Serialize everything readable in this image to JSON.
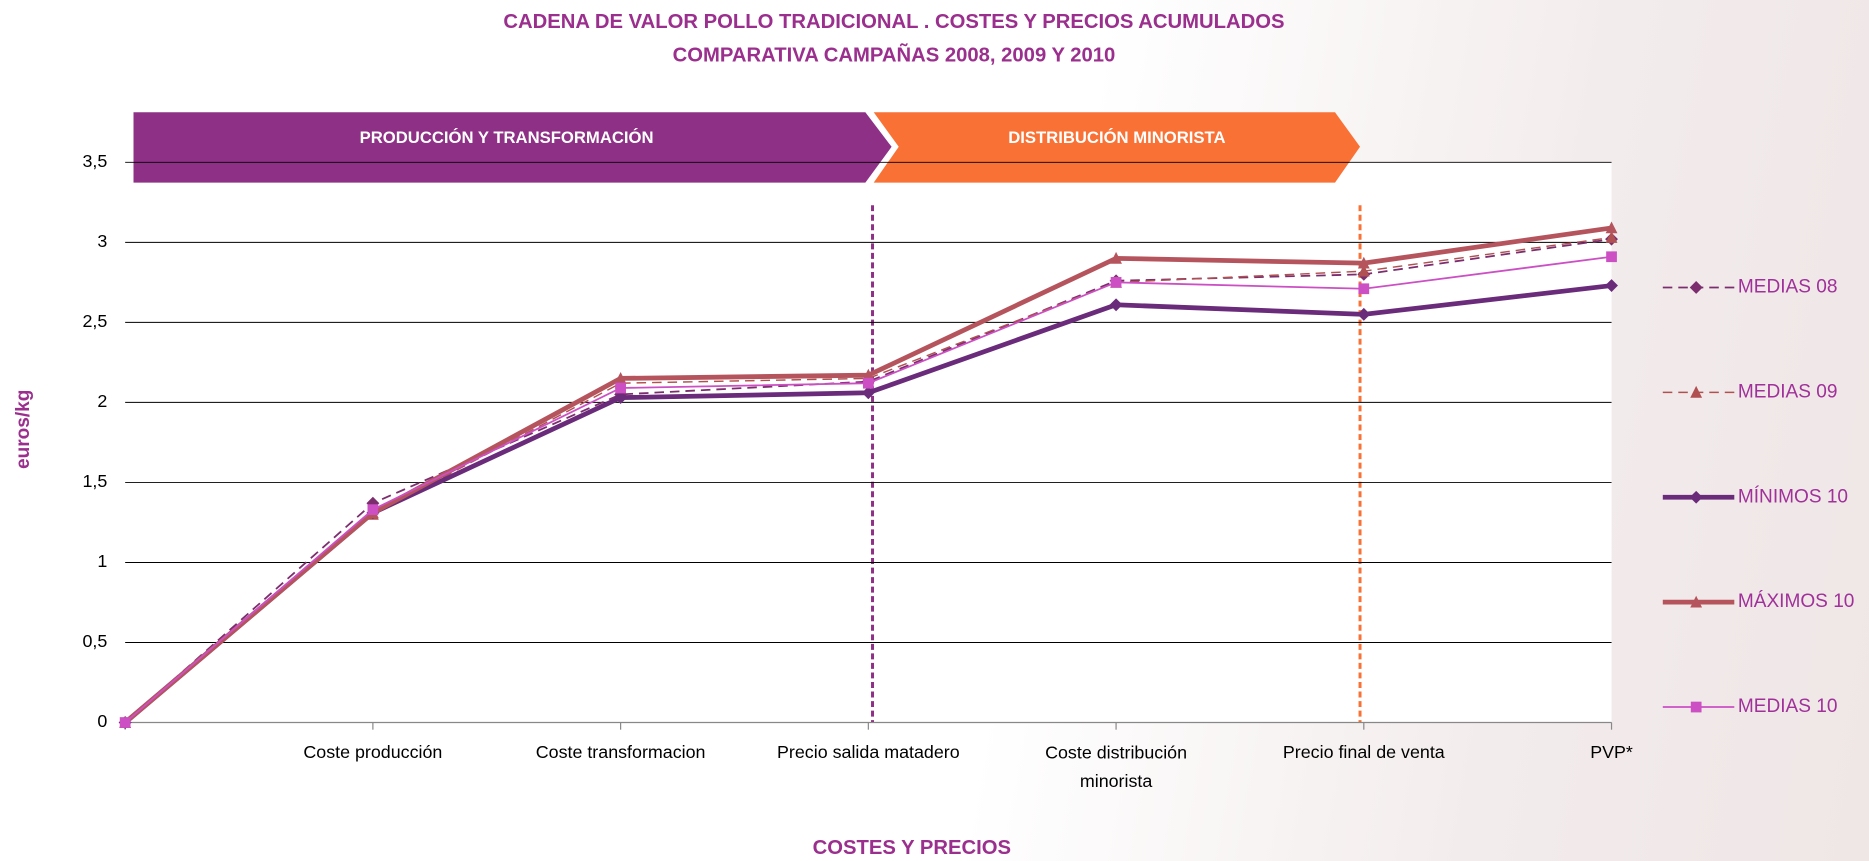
{
  "chart_data": {
    "type": "line",
    "title": "CADENA DE VALOR POLLO TRADICIONAL . COSTES Y PRECIOS ACUMULADOS",
    "subtitle": "COMPARATIVA CAMPAÑAS 2008, 2009 Y 2010",
    "phases": [
      "PRODUCCIÓN Y TRANSFORMACIÓN",
      "DISTRIBUCIÓN MINORISTA"
    ],
    "x_label": "COSTES Y PRECIOS",
    "y_label": "euros/kg",
    "categories": [
      null,
      "Coste producción",
      "Coste transformacion",
      "Precio salida matadero",
      "Coste distribución minorista",
      "Precio final de venta",
      "PVP*"
    ],
    "series": [
      {
        "name": "MEDIAS 08",
        "color": "#7b2d6e",
        "marker": "diamond",
        "dashed": true,
        "width": 1.5,
        "values": [
          0,
          1.37,
          2.05,
          2.13,
          2.76,
          2.8,
          3.02
        ]
      },
      {
        "name": "MEDIAS 09",
        "color": "#b05050",
        "marker": "triangle",
        "dashed": true,
        "width": 1.2,
        "values": [
          0,
          1.3,
          2.12,
          2.15,
          2.75,
          2.82,
          3.03
        ]
      },
      {
        "name": "MÍNIMOS 10",
        "color": "#6a2b7a",
        "marker": "diamond",
        "dashed": false,
        "width": 4,
        "values": [
          0,
          1.31,
          2.03,
          2.06,
          2.61,
          2.55,
          2.73
        ]
      },
      {
        "name": "MÁXIMOS 10",
        "color": "#b5545c",
        "marker": "triangle",
        "dashed": false,
        "width": 4,
        "values": [
          0,
          1.31,
          2.15,
          2.17,
          2.9,
          2.87,
          3.09
        ]
      },
      {
        "name": "MEDIAS 10",
        "color": "#cc4fc4",
        "marker": "square",
        "dashed": false,
        "width": 1.5,
        "values": [
          0,
          1.33,
          2.09,
          2.12,
          2.75,
          2.71,
          2.91
        ]
      }
    ],
    "ylim": [
      0,
      3.5
    ],
    "yticks": [
      0,
      {
        "value": 0.5,
        "label": "0,5"
      },
      1,
      {
        "value": 1.5,
        "label": "1,5"
      },
      2,
      {
        "value": 2.5,
        "label": "2,5"
      },
      3,
      {
        "value": 3.5,
        "label": "3,5"
      }
    ],
    "grid": true
  }
}
